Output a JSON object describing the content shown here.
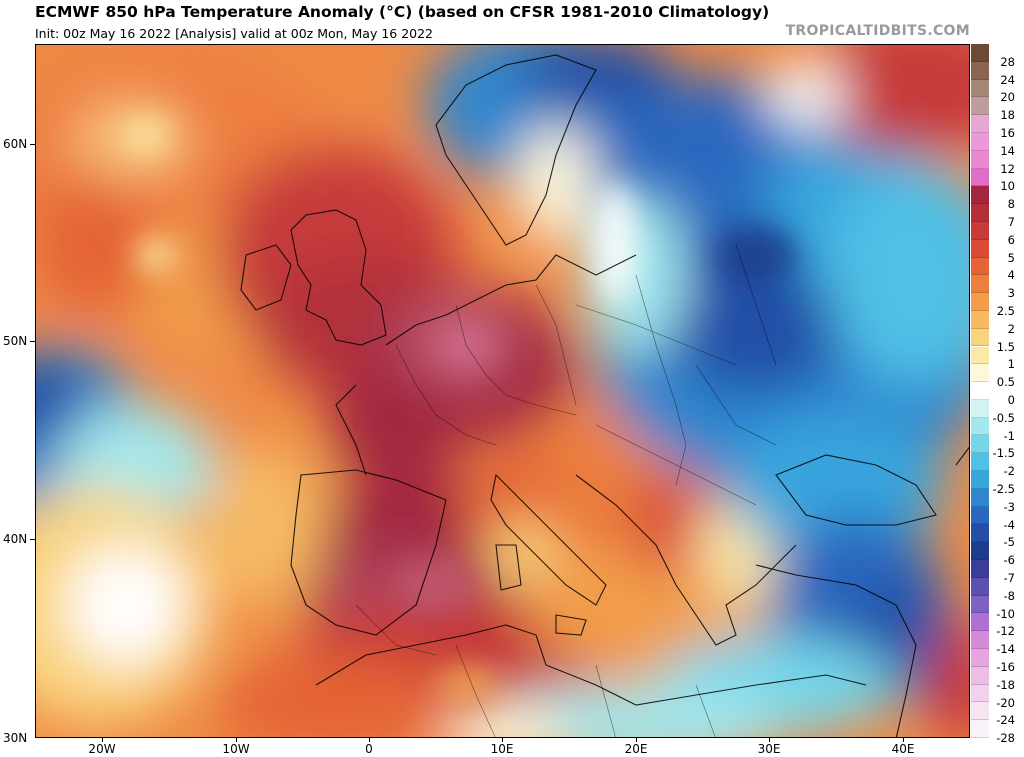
{
  "header": {
    "title": "ECMWF 850 hPa Temperature Anomaly (°C) (based on CFSR 1981-2010 Climatology)",
    "subtitle": "Init: 00z May 16 2022   [Analysis]   valid at 00z Mon, May 16 2022",
    "brand": "TROPICALTIDBITS.COM"
  },
  "axes": {
    "lat_labels": [
      "60N",
      "50N",
      "40N",
      "30N"
    ],
    "lon_labels": [
      "20W",
      "10W",
      "0",
      "10E",
      "20E",
      "30E",
      "40E"
    ]
  },
  "colorbar": {
    "levels": [
      "28",
      "24",
      "20",
      "18",
      "16",
      "14",
      "12",
      "10",
      "8",
      "7",
      "6",
      "5",
      "4",
      "3",
      "2.5",
      "2",
      "1.5",
      "1",
      "0.5",
      "0",
      "-0.5",
      "-1",
      "-1.5",
      "-2",
      "-2.5",
      "-3",
      "-4",
      "-5",
      "-6",
      "-7",
      "-8",
      "-10",
      "-12",
      "-14",
      "-16",
      "-18",
      "-20",
      "-24",
      "-28"
    ],
    "colors": [
      "#6e4a36",
      "#8a6450",
      "#a48777",
      "#c19c9c",
      "#e6a7d2",
      "#ee98dc",
      "#eb86d2",
      "#de6ec6",
      "#a3263f",
      "#b3303b",
      "#c63a3a",
      "#d94b37",
      "#e46435",
      "#ec7f3c",
      "#f29d4c",
      "#f6ba63",
      "#f9d47d",
      "#fbe9a6",
      "#fdf7dc",
      "#ffffff",
      "#d2f3f4",
      "#a3e8ee",
      "#75d6e9",
      "#4fc0e6",
      "#39a5dd",
      "#2f86cf",
      "#2a68bf",
      "#234fa7",
      "#1d3d8c",
      "#3c3c9a",
      "#5c4fb0",
      "#7d62c3",
      "#b06fd2",
      "#d58ad8",
      "#e6a5de",
      "#ecbde6",
      "#f1d2ec",
      "#f6e4f2",
      "#fbf1f8"
    ]
  }
}
